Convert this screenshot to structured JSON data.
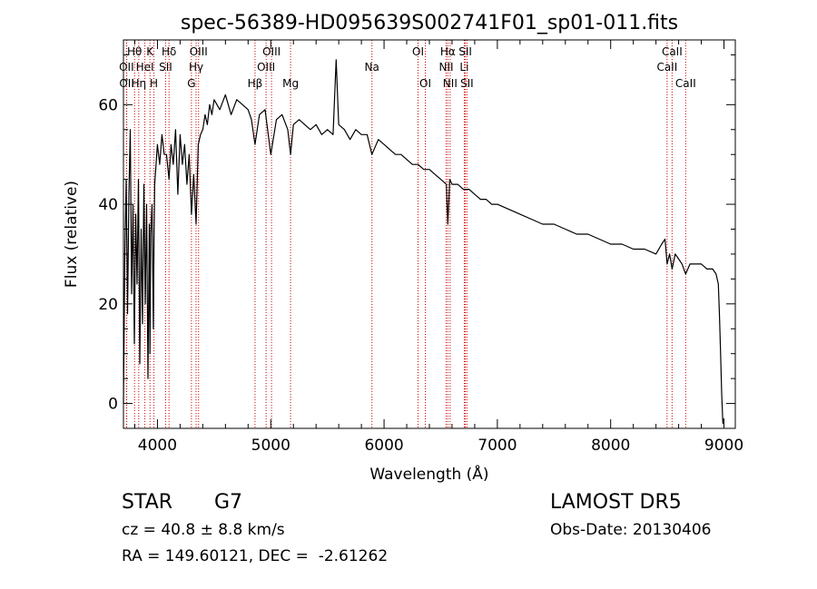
{
  "chart_data": {
    "type": "line",
    "title": "spec-56389-HD095639S002741F01_sp01-011.fits",
    "xlabel": "Wavelength (Å)",
    "ylabel": "Flux (relative)",
    "xlim": [
      3700,
      9100
    ],
    "ylim": [
      -5,
      73
    ],
    "xticks": [
      4000,
      5000,
      6000,
      7000,
      8000,
      9000
    ],
    "yticks": [
      0,
      20,
      40,
      60
    ],
    "grid": false,
    "line_color": "#000000",
    "marker_color": "#cc0000",
    "lines": [
      {
        "label": "OII",
        "wavelength": 3727,
        "row": 1
      },
      {
        "label": "OII",
        "wavelength": 3729,
        "row": 2
      },
      {
        "label": "Hθ",
        "wavelength": 3798,
        "row": 0
      },
      {
        "label": "Hη",
        "wavelength": 3835,
        "row": 2
      },
      {
        "label": "HeI",
        "wavelength": 3889,
        "row": 1
      },
      {
        "label": "K",
        "wavelength": 3934,
        "row": 0
      },
      {
        "label": "H",
        "wavelength": 3969,
        "row": 2
      },
      {
        "label": "Hδ",
        "wavelength": 4102,
        "row": 0
      },
      {
        "label": "SII",
        "wavelength": 4072,
        "row": 1
      },
      {
        "label": "G",
        "wavelength": 4300,
        "row": 2
      },
      {
        "label": "Hγ",
        "wavelength": 4341,
        "row": 1
      },
      {
        "label": "OIII",
        "wavelength": 4363,
        "row": 0
      },
      {
        "label": "Hβ",
        "wavelength": 4861,
        "row": 2
      },
      {
        "label": "OIII",
        "wavelength": 4959,
        "row": 1
      },
      {
        "label": "OIII",
        "wavelength": 5007,
        "row": 0
      },
      {
        "label": "Mg",
        "wavelength": 5175,
        "row": 2
      },
      {
        "label": "Na",
        "wavelength": 5893,
        "row": 1
      },
      {
        "label": "OI",
        "wavelength": 6300,
        "row": 0
      },
      {
        "label": "OI",
        "wavelength": 6364,
        "row": 2
      },
      {
        "label": "NII",
        "wavelength": 6548,
        "row": 1
      },
      {
        "label": "NII",
        "wavelength": 6583,
        "row": 2
      },
      {
        "label": "Hα",
        "wavelength": 6563,
        "row": 0
      },
      {
        "label": "SII",
        "wavelength": 6717,
        "row": 0
      },
      {
        "label": "Li",
        "wavelength": 6708,
        "row": 1
      },
      {
        "label": "SII",
        "wavelength": 6731,
        "row": 2
      },
      {
        "label": "CaII",
        "wavelength": 8498,
        "row": 1
      },
      {
        "label": "CaII",
        "wavelength": 8542,
        "row": 0
      },
      {
        "label": "CaII",
        "wavelength": 8662,
        "row": 2
      }
    ],
    "series": [
      {
        "x": [
          3700,
          3712,
          3724,
          3736,
          3748,
          3760,
          3772,
          3784,
          3796,
          3808,
          3820,
          3832,
          3844,
          3856,
          3868,
          3880,
          3892,
          3904,
          3916,
          3928,
          3934,
          3940,
          3952,
          3964,
          3969,
          3976,
          3988,
          4000,
          4020,
          4040,
          4060,
          4080,
          4102,
          4120,
          4140,
          4160,
          4180,
          4200,
          4220,
          4240,
          4260,
          4280,
          4300,
          4320,
          4341,
          4360,
          4380,
          4400,
          4420,
          4440,
          4460,
          4480,
          4500,
          4550,
          4600,
          4650,
          4700,
          4750,
          4800,
          4830,
          4861,
          4900,
          4950,
          5000,
          5050,
          5100,
          5150,
          5175,
          5200,
          5250,
          5300,
          5350,
          5400,
          5450,
          5500,
          5550,
          5577,
          5600,
          5650,
          5700,
          5750,
          5800,
          5850,
          5893,
          5950,
          6000,
          6050,
          6100,
          6150,
          6200,
          6250,
          6300,
          6350,
          6400,
          6450,
          6500,
          6550,
          6563,
          6580,
          6600,
          6650,
          6700,
          6750,
          6800,
          6850,
          6900,
          6950,
          7000,
          7100,
          7200,
          7300,
          7400,
          7500,
          7600,
          7700,
          7800,
          7900,
          8000,
          8100,
          8200,
          8300,
          8400,
          8450,
          8480,
          8498,
          8520,
          8542,
          8570,
          8600,
          8630,
          8662,
          8700,
          8750,
          8800,
          8850,
          8900,
          8930,
          8950,
          8960,
          8970,
          8980,
          8990,
          9000
        ],
        "y": [
          0,
          30,
          45,
          18,
          42,
          55,
          22,
          40,
          12,
          38,
          24,
          45,
          8,
          35,
          16,
          44,
          20,
          40,
          5,
          36,
          10,
          34,
          40,
          15,
          32,
          44,
          48,
          52,
          48,
          54,
          50,
          50,
          45,
          52,
          48,
          55,
          42,
          54,
          48,
          52,
          44,
          50,
          38,
          46,
          36,
          52,
          54,
          55,
          58,
          56,
          60,
          58,
          61,
          59,
          62,
          58,
          61,
          60,
          59,
          57,
          52,
          58,
          59,
          50,
          57,
          58,
          55,
          50,
          56,
          57,
          56,
          55,
          56,
          54,
          55,
          54,
          69,
          56,
          55,
          53,
          55,
          54,
          54,
          50,
          53,
          52,
          51,
          50,
          50,
          49,
          48,
          48,
          47,
          47,
          46,
          45,
          44,
          36,
          45,
          44,
          44,
          43,
          43,
          42,
          41,
          41,
          40,
          40,
          39,
          38,
          37,
          36,
          36,
          35,
          34,
          34,
          33,
          32,
          32,
          31,
          31,
          30,
          32,
          33,
          28,
          30,
          27,
          30,
          29,
          28,
          26,
          28,
          28,
          28,
          27,
          27,
          26,
          24,
          18,
          10,
          2,
          -4,
          -3
        ]
      }
    ]
  },
  "info": {
    "object_type": "STAR",
    "subclass": "G7",
    "survey": "LAMOST DR5",
    "cz": "cz = 40.8 ± 8.8 km/s",
    "obs_date": "Obs-Date: 20130406",
    "coords": "RA = 149.60121, DEC =  -2.61262"
  }
}
